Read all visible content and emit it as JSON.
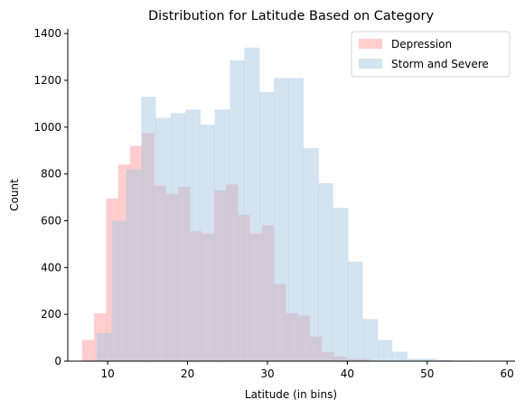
{
  "chart_data": {
    "type": "bar",
    "title": "Distribution for Latitude Based on Category",
    "xlabel": "Latitude (in bins)",
    "ylabel": "Count",
    "xlim": [
      5,
      61
    ],
    "ylim": [
      0,
      1420
    ],
    "xticks": [
      10,
      20,
      30,
      40,
      50,
      60
    ],
    "yticks": [
      0,
      200,
      400,
      600,
      800,
      1000,
      1200,
      1400
    ],
    "grid": false,
    "legend_position": "top-right",
    "series": [
      {
        "name": "Depression",
        "color": "#ff9c9c",
        "opacity": 0.5,
        "bin_edges": [
          6.8,
          8.3,
          9.8,
          11.3,
          12.8,
          14.3,
          15.8,
          17.3,
          18.8,
          20.3,
          21.8,
          23.3,
          24.8,
          26.3,
          27.8,
          29.3,
          30.8,
          32.3,
          33.8,
          35.3,
          36.8,
          38.3,
          39.8,
          41.3,
          42.8
        ],
        "counts": [
          90,
          205,
          695,
          840,
          920,
          975,
          750,
          715,
          745,
          555,
          545,
          730,
          755,
          625,
          545,
          580,
          330,
          205,
          195,
          105,
          40,
          20,
          10,
          10
        ]
      },
      {
        "name": "Storm and Severe",
        "color": "#a7c8e2",
        "opacity": 0.5,
        "bin_edges": [
          8.6,
          10.5,
          12.3,
          14.2,
          16.0,
          17.9,
          19.7,
          21.6,
          23.4,
          25.3,
          27.1,
          29.0,
          30.8,
          32.7,
          34.5,
          36.4,
          38.2,
          40.1,
          41.9,
          43.8,
          45.6,
          47.5,
          49.3,
          51.2,
          53.0,
          54.9,
          56.7,
          58.6
        ],
        "counts": [
          120,
          600,
          820,
          1130,
          1040,
          1060,
          1075,
          1010,
          1075,
          1285,
          1340,
          1150,
          1210,
          1210,
          910,
          760,
          655,
          425,
          180,
          90,
          40,
          10,
          10,
          5,
          2,
          1,
          1
        ]
      }
    ]
  }
}
